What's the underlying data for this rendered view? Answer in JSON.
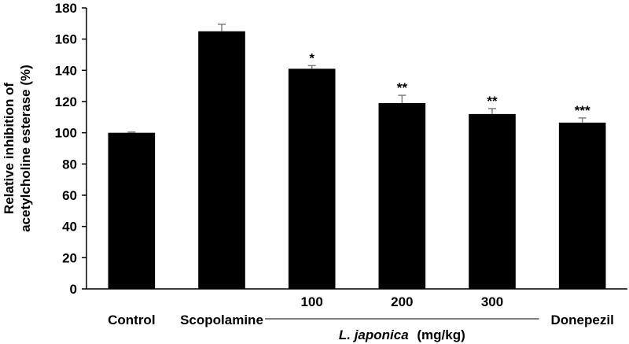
{
  "chart_data": {
    "type": "bar",
    "title": "",
    "ylabel_lines": [
      "Relative inhibition of",
      "acetylcholine esterase (%)"
    ],
    "xlabel": "",
    "ylim": [
      0,
      180
    ],
    "yticks": [
      0,
      20,
      40,
      60,
      80,
      100,
      120,
      140,
      160,
      180
    ],
    "grid": false,
    "legend": "none",
    "bar_color": "#000000",
    "error_bar_color": "#808080",
    "bars": [
      {
        "label": "Control",
        "value": 100,
        "error": 0.5,
        "significance": ""
      },
      {
        "label": "Scopolamine",
        "value": 165,
        "error": 4.5,
        "significance": ""
      },
      {
        "label": "100",
        "value": 141,
        "error": 2.0,
        "significance": "*"
      },
      {
        "label": "200",
        "value": 119,
        "error": 5.0,
        "significance": "**"
      },
      {
        "label": "300",
        "value": 112,
        "error": 3.5,
        "significance": "**"
      },
      {
        "label": "Donepezil",
        "value": 106.5,
        "error": 3.0,
        "significance": "***"
      }
    ],
    "group": {
      "name_italic": "L. japonica",
      "unit": "(mg/kg)",
      "members": [
        "100",
        "200",
        "300"
      ]
    }
  }
}
